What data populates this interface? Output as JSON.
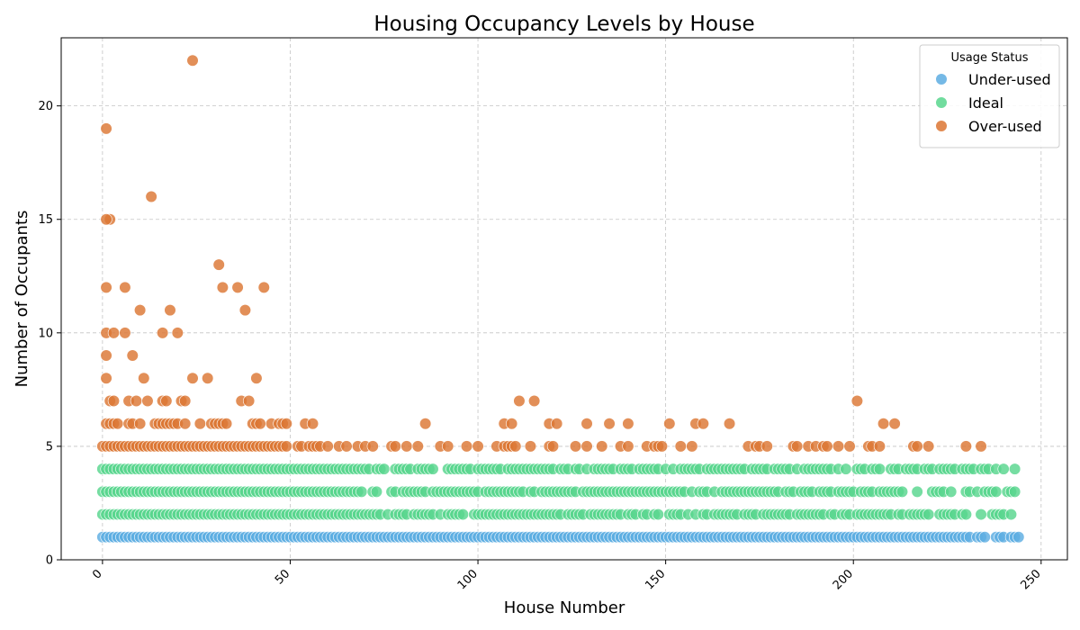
{
  "chart_data": {
    "type": "scatter",
    "title": "Housing Occupancy Levels by House",
    "xlabel": "House Number",
    "ylabel": "Number of Occupants",
    "xlim": [
      -11,
      257
    ],
    "ylim": [
      0,
      23
    ],
    "xticks": [
      0,
      50,
      100,
      150,
      200,
      250
    ],
    "yticks": [
      0,
      5,
      10,
      15,
      20
    ],
    "grid": true,
    "legend": {
      "title": "Usage Status",
      "placement": "top-right",
      "entries": [
        {
          "label": "Under-used",
          "color": "#5dade2"
        },
        {
          "label": "Ideal",
          "color": "#58d68d"
        },
        {
          "label": "Over-used",
          "color": "#dc7633"
        }
      ]
    },
    "series": [
      {
        "name": "Under-used",
        "color": "#5dade2",
        "x_range": [
          0,
          244
        ],
        "y_values": [
          1
        ]
      },
      {
        "name": "Ideal",
        "color": "#58d68d",
        "x_range": [
          0,
          243
        ],
        "y_values": [
          2,
          3,
          4
        ]
      },
      {
        "name": "Over-used",
        "color": "#dc7633",
        "x_range": [
          0,
          235
        ],
        "y_values": [
          5,
          6,
          7,
          8,
          9,
          10,
          11,
          12,
          13,
          15,
          16,
          19,
          22
        ]
      }
    ],
    "over_used_points": [
      [
        1,
        19
      ],
      [
        2,
        15
      ],
      [
        1,
        15
      ],
      [
        1,
        12
      ],
      [
        1,
        10
      ],
      [
        1,
        9
      ],
      [
        1,
        8
      ],
      [
        3,
        10
      ],
      [
        2,
        7
      ],
      [
        3,
        7
      ],
      [
        6,
        12
      ],
      [
        6,
        10
      ],
      [
        7,
        7
      ],
      [
        8,
        9
      ],
      [
        9,
        7
      ],
      [
        10,
        11
      ],
      [
        11,
        8
      ],
      [
        12,
        7
      ],
      [
        13,
        16
      ],
      [
        16,
        10
      ],
      [
        16,
        7
      ],
      [
        17,
        7
      ],
      [
        18,
        11
      ],
      [
        20,
        10
      ],
      [
        21,
        7
      ],
      [
        22,
        7
      ],
      [
        24,
        22
      ],
      [
        24,
        8
      ],
      [
        28,
        8
      ],
      [
        31,
        13
      ],
      [
        32,
        12
      ],
      [
        36,
        12
      ],
      [
        37,
        7
      ],
      [
        38,
        11
      ],
      [
        39,
        7
      ],
      [
        41,
        8
      ],
      [
        43,
        12
      ],
      [
        111,
        7
      ],
      [
        115,
        7
      ],
      [
        201,
        7
      ],
      [
        1,
        6
      ],
      [
        2,
        6
      ],
      [
        3,
        6
      ],
      [
        4,
        6
      ],
      [
        7,
        6
      ],
      [
        8,
        6
      ],
      [
        10,
        6
      ],
      [
        14,
        6
      ],
      [
        15,
        6
      ],
      [
        16,
        6
      ],
      [
        17,
        6
      ],
      [
        18,
        6
      ],
      [
        19,
        6
      ],
      [
        20,
        6
      ],
      [
        22,
        6
      ],
      [
        26,
        6
      ],
      [
        29,
        6
      ],
      [
        30,
        6
      ],
      [
        31,
        6
      ],
      [
        32,
        6
      ],
      [
        33,
        6
      ],
      [
        40,
        6
      ],
      [
        41,
        6
      ],
      [
        42,
        6
      ],
      [
        45,
        6
      ],
      [
        47,
        6
      ],
      [
        48,
        6
      ],
      [
        49,
        6
      ],
      [
        54,
        6
      ],
      [
        56,
        6
      ],
      [
        86,
        6
      ],
      [
        107,
        6
      ],
      [
        109,
        6
      ],
      [
        119,
        6
      ],
      [
        121,
        6
      ],
      [
        129,
        6
      ],
      [
        135,
        6
      ],
      [
        140,
        6
      ],
      [
        151,
        6
      ],
      [
        158,
        6
      ],
      [
        160,
        6
      ],
      [
        167,
        6
      ],
      [
        208,
        6
      ],
      [
        211,
        6
      ]
    ],
    "over_used_five_x": [
      0,
      1,
      2,
      3,
      4,
      5,
      6,
      7,
      8,
      9,
      10,
      11,
      12,
      13,
      14,
      15,
      16,
      17,
      18,
      19,
      20,
      21,
      22,
      23,
      24,
      25,
      26,
      27,
      28,
      29,
      30,
      31,
      32,
      33,
      34,
      35,
      36,
      37,
      38,
      39,
      40,
      41,
      42,
      43,
      44,
      45,
      46,
      47,
      48,
      49,
      52,
      53,
      55,
      56,
      57,
      58,
      60,
      63,
      65,
      68,
      70,
      72,
      77,
      78,
      81,
      84,
      90,
      92,
      97,
      100,
      105,
      107,
      108,
      109,
      110,
      114,
      119,
      120,
      126,
      129,
      133,
      138,
      140,
      145,
      147,
      148,
      149,
      154,
      157,
      172,
      174,
      175,
      177,
      184,
      185,
      188,
      190,
      192,
      193,
      196,
      199,
      204,
      205,
      207,
      216,
      217,
      220,
      230,
      234
    ]
  }
}
